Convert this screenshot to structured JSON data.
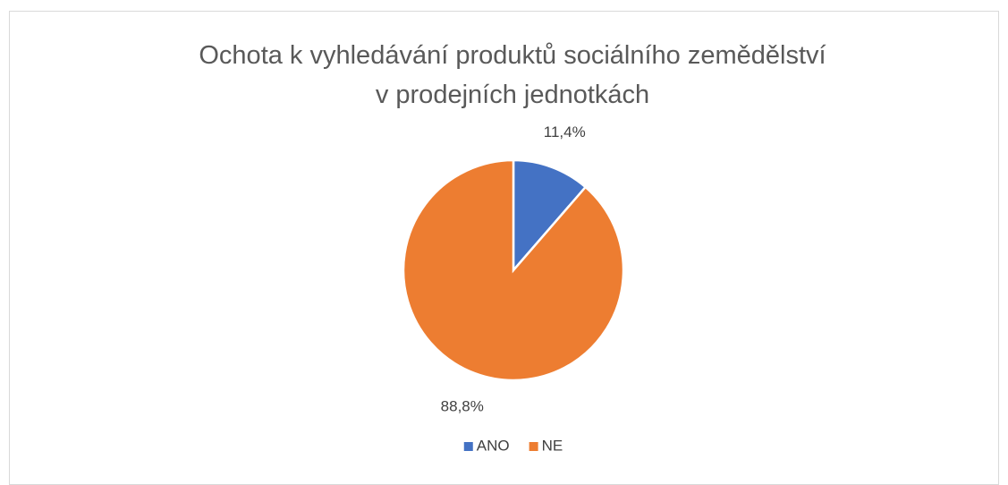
{
  "chart_data": {
    "type": "pie",
    "title": "Ochota k vyhledávání produktů sociálního zemědělství v prodejních jednotkách",
    "categories": [
      "ANO",
      "NE"
    ],
    "values": [
      11.4,
      88.8
    ],
    "value_labels": [
      "11,4%",
      "88,8%"
    ],
    "colors": [
      "#4472c4",
      "#ed7d31"
    ],
    "legend": "bottom"
  }
}
